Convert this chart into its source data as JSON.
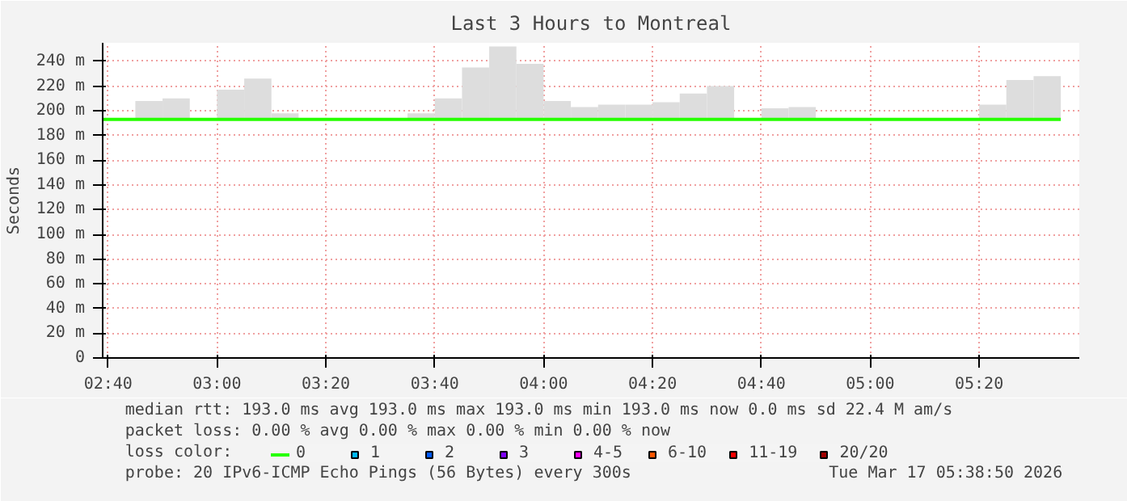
{
  "chart_data": {
    "type": "bar",
    "title": "Last 3 Hours to Montreal",
    "ylabel": "Seconds",
    "xlim": [
      2.65,
      5.64
    ],
    "xticks": [
      {
        "value": 2.6667,
        "label": "02:40"
      },
      {
        "value": 3.0,
        "label": "03:00"
      },
      {
        "value": 3.3333,
        "label": "03:20"
      },
      {
        "value": 3.6667,
        "label": "03:40"
      },
      {
        "value": 4.0,
        "label": "04:00"
      },
      {
        "value": 4.3333,
        "label": "04:20"
      },
      {
        "value": 4.6667,
        "label": "04:40"
      },
      {
        "value": 5.0,
        "label": "05:00"
      },
      {
        "value": 5.3333,
        "label": "05:20"
      }
    ],
    "ylim": [
      0,
      255
    ],
    "yticks": [
      0,
      {
        "value": 20,
        "label": "20 m"
      },
      {
        "value": 40,
        "label": "40 m"
      },
      {
        "value": 60,
        "label": "60 m"
      },
      {
        "value": 80,
        "label": "80 m"
      },
      {
        "value": 100,
        "label": "100 m"
      },
      {
        "value": 120,
        "label": "120 m"
      },
      {
        "value": 140,
        "label": "140 m"
      },
      {
        "value": 160,
        "label": "160 m"
      },
      {
        "value": 180,
        "label": "180 m"
      },
      {
        "value": 200,
        "label": "200 m"
      },
      {
        "value": 220,
        "label": "220 m"
      },
      {
        "value": 240,
        "label": "240 m"
      }
    ],
    "grid": true,
    "legend": "bottom",
    "legend_title": "loss color:",
    "series": [
      {
        "color": "#dddddd",
        "x": [
          2.7917,
          2.875,
          3.0417,
          3.125,
          3.2083,
          3.625,
          3.7083,
          3.7917,
          3.875,
          3.9583,
          4.0417,
          4.125,
          4.2083,
          4.2917,
          4.375,
          4.4583,
          4.5417,
          4.7083,
          4.7917,
          4.875,
          4.9583,
          5.375,
          5.4583,
          5.5417
        ],
        "base": [
          193,
          193,
          193,
          193,
          193,
          193,
          193,
          193,
          193,
          193,
          193,
          193,
          193,
          193,
          193,
          193,
          193,
          193,
          193,
          null,
          null,
          193,
          193,
          193
        ],
        "values": [
          15,
          17,
          24,
          33,
          5,
          5,
          17,
          42,
          59,
          45,
          15,
          10,
          12,
          12,
          14,
          21,
          27,
          9,
          10,
          null,
          null,
          12,
          32,
          35
        ]
      },
      {
        "type": "line",
        "name": "0",
        "color": "#26ff00",
        "x": [
          2.65,
          5.5833
        ],
        "values": [
          193,
          193
        ]
      },
      {
        "type": "scatter",
        "marker": "square",
        "name": "1",
        "color": "#00b8ff"
      },
      {
        "type": "scatter",
        "marker": "square",
        "name": "2",
        "color": "#0059ff"
      },
      {
        "type": "scatter",
        "marker": "square",
        "name": "3",
        "color": "#7e00ff"
      },
      {
        "type": "scatter",
        "marker": "square",
        "name": "4-5",
        "color": "#ff00ff"
      },
      {
        "type": "scatter",
        "marker": "square",
        "name": "6-10",
        "color": "#ff5500"
      },
      {
        "type": "scatter",
        "marker": "square",
        "name": "11-19",
        "color": "#ff0000"
      },
      {
        "type": "scatter",
        "marker": "square",
        "name": "20/20",
        "color": "#a10000"
      }
    ],
    "annotations": [
      "median rtt:  193.0 ms avg  193.0 ms max  193.0 ms min  193.0 ms now  0.0 ms sd  22.4 M am/s",
      "packet loss: 0.00 % avg  0.00 % max  0.00 % min  0.00 % now",
      "probe:       20 IPv6-ICMP Echo Pings (56 Bytes) every 300s",
      "Tue Mar 17 05:38:50 2026"
    ]
  }
}
